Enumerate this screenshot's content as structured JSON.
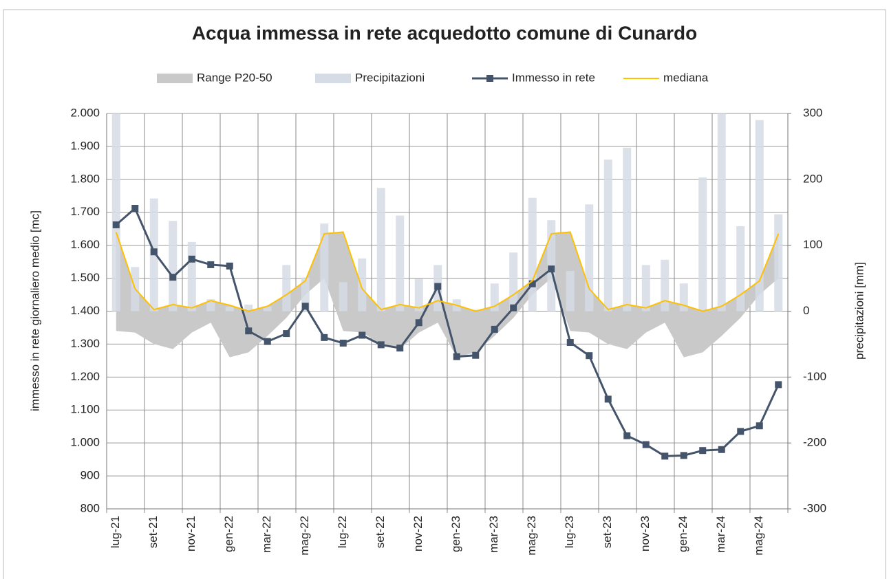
{
  "chart_data": {
    "type": "line",
    "title": "Acqua immessa in rete acquedotto comune di Cunardo",
    "ylabel": "immesso in rete giornaliero medio [mc]",
    "y2label": "precipitazioni [mm]",
    "categories": [
      "lug-21",
      null,
      "set-21",
      null,
      "nov-21",
      null,
      "gen-22",
      null,
      "mar-22",
      null,
      "mag-22",
      null,
      "lug-22",
      null,
      "set-22",
      null,
      "nov-22",
      null,
      "gen-23",
      null,
      "mar-23",
      null,
      "mag-23",
      null,
      "lug-23",
      null,
      "set-23",
      null,
      "nov-23",
      null,
      "gen-24",
      null,
      "mar-24",
      null,
      "mag-24",
      null
    ],
    "ylim": [
      800,
      2000
    ],
    "yticks": [
      {
        "value": 2000,
        "label": "2.000"
      },
      {
        "value": 1900,
        "label": "1.900"
      },
      {
        "value": 1800,
        "label": "1.800"
      },
      {
        "value": 1700,
        "label": "1.700"
      },
      {
        "value": 1600,
        "label": "1.600"
      },
      {
        "value": 1500,
        "label": "1.500"
      },
      {
        "value": 1400,
        "label": "1.400"
      },
      {
        "value": 1300,
        "label": "1.300"
      },
      {
        "value": 1200,
        "label": "1.200"
      },
      {
        "value": 1100,
        "label": "1.100"
      },
      {
        "value": 1000,
        "label": "1.000"
      },
      900,
      800
    ],
    "y2lim": [
      -300,
      300
    ],
    "y2ticks": [
      300,
      200,
      100,
      0,
      -100,
      -200,
      -300
    ],
    "grid": true,
    "legend": "top",
    "series": [
      {
        "name": "Range P20-50",
        "kind": "range",
        "color": "#c9c9c9",
        "low": [
          1340,
          1335,
          1300,
          1285,
          1335,
          1365,
          1260,
          1275,
          1325,
          1380,
          1450,
          1500,
          1340,
          1335,
          1300,
          1285,
          1335,
          1365,
          1260,
          1275,
          1325,
          1380,
          1450,
          1500,
          1340,
          1335,
          1300,
          1285,
          1335,
          1365,
          1260,
          1275,
          1325,
          1380,
          1450,
          1500
        ],
        "high": [
          1640,
          1468,
          1405,
          1420,
          1410,
          1432,
          1418,
          1400,
          1415,
          1450,
          1492,
          1635,
          1640,
          1468,
          1405,
          1420,
          1410,
          1432,
          1418,
          1400,
          1415,
          1450,
          1492,
          1635,
          1640,
          1468,
          1405,
          1420,
          1410,
          1432,
          1418,
          1400,
          1415,
          1450,
          1492,
          1635
        ]
      },
      {
        "name": "Precipitazioni",
        "kind": "bar",
        "axis": "y2",
        "color": "#d6dce5",
        "values": [
          300,
          67,
          171,
          137,
          105,
          18,
          7,
          10,
          7,
          70,
          51,
          133,
          44,
          80,
          187,
          145,
          49,
          70,
          18,
          2,
          42,
          89,
          172,
          138,
          61,
          162,
          230,
          248,
          70,
          78,
          42,
          203,
          300,
          129,
          290,
          147
        ]
      },
      {
        "name": "Immesso in rete",
        "kind": "line",
        "marker": "square",
        "color": "#44546a",
        "values": [
          1662,
          1712,
          1580,
          1503,
          1558,
          1541,
          1537,
          1340,
          1308,
          1332,
          1415,
          1320,
          1303,
          1327,
          1298,
          1288,
          1365,
          1475,
          1262,
          1266,
          1345,
          1410,
          1483,
          1528,
          1305,
          1265,
          1133,
          1022,
          995,
          960,
          962,
          977,
          980,
          1035,
          1052,
          1177
        ]
      },
      {
        "name": "mediana",
        "kind": "line",
        "color": "#ffc000",
        "values": [
          1640,
          1468,
          1405,
          1420,
          1410,
          1432,
          1418,
          1400,
          1415,
          1450,
          1492,
          1635,
          1640,
          1468,
          1405,
          1420,
          1410,
          1432,
          1418,
          1400,
          1415,
          1450,
          1492,
          1635,
          1640,
          1468,
          1405,
          1420,
          1410,
          1432,
          1418,
          1400,
          1415,
          1450,
          1492,
          1635
        ]
      }
    ]
  }
}
